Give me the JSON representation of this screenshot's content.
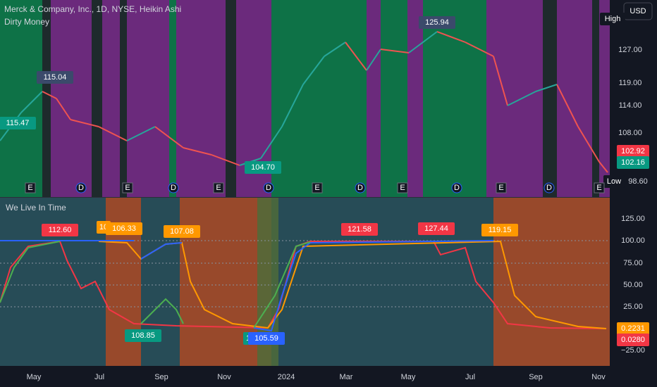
{
  "header": {
    "title": "Merck & Company, Inc., 1D, NYSE, Heikin Ashi",
    "indicator": "Dirty Money",
    "currency": "USD"
  },
  "price_pane": {
    "axis_labels": [
      "127.00",
      "119.00",
      "114.00",
      "108.00"
    ],
    "high_label": "High",
    "low_label": "Low",
    "low_value": "98.60",
    "current_labels": [
      "102.92",
      "102.16"
    ],
    "chart_labels": [
      "115.47",
      "115.04",
      "104.70",
      "125.94"
    ],
    "event_markers": [
      "E",
      "D"
    ]
  },
  "indicator_pane": {
    "title": "We Live In Time",
    "axis_labels": [
      "125.00",
      "100.00",
      "75.00",
      "50.00",
      "25.00",
      "−25.00"
    ],
    "current_labels": [
      "0.2231",
      "0.0280"
    ],
    "chart_labels": [
      "112.60",
      "10",
      "106.33",
      "107.08",
      "108.85",
      "1",
      "105.59",
      "121.58",
      "127.44",
      "119.15"
    ]
  },
  "x_axis": {
    "labels": [
      "May",
      "Jul",
      "Sep",
      "Nov",
      "2024",
      "Mar",
      "May",
      "Jul",
      "Sep",
      "Nov"
    ]
  }
}
